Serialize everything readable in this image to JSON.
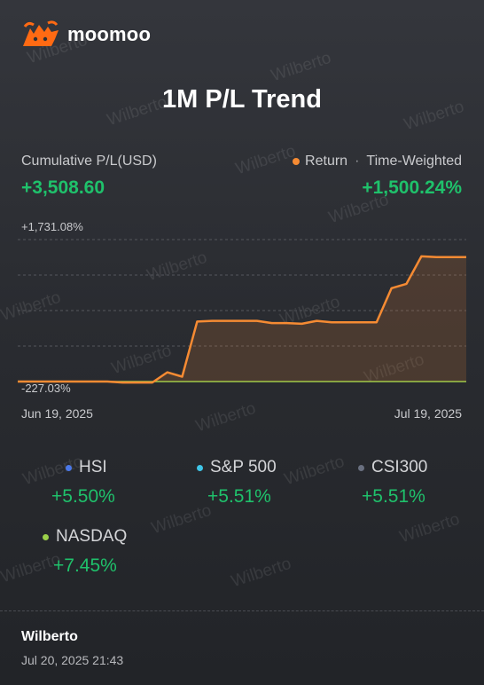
{
  "brand": {
    "name": "moomoo",
    "logo_icon": "moomoo-bull-logo-icon",
    "logo_color": "#ff6a13"
  },
  "title": "1M P/L Trend",
  "cumulative": {
    "label": "Cumulative P/L(USD)",
    "value": "+3,508.60"
  },
  "legend": {
    "series_label": "Return",
    "separator": "·",
    "method": "Time-Weighted",
    "value": "+1,500.24%"
  },
  "watermark": "Wilberto",
  "colors": {
    "positive": "#1fc16b",
    "return_line": "#f68b33",
    "benchmark_line": "#9bd04a"
  },
  "chart_data": {
    "type": "line",
    "ylim_labels": {
      "top": "+1,731.08%",
      "bottom": "-227.03%"
    },
    "ylim": [
      -227.03,
      1731.08
    ],
    "x_labels": {
      "start": "Jun 19, 2025",
      "end": "Jul 19, 2025"
    },
    "grid": true,
    "series": [
      {
        "name": "Return",
        "color": "#f68b33",
        "values": [
          -227,
          -227,
          -227,
          -227,
          -227,
          -227,
          -227,
          -240,
          -240,
          -240,
          -100,
          -160,
          600,
          610,
          610,
          610,
          610,
          580,
          580,
          570,
          610,
          590,
          590,
          590,
          590,
          1060,
          1120,
          1500,
          1490,
          1490,
          1490
        ]
      },
      {
        "color": "#9bd04a",
        "values": [
          -227,
          -227,
          -227,
          -227,
          -227,
          -227,
          -227,
          -227,
          -227,
          -227,
          -227,
          -227,
          -227,
          -227,
          -227,
          -227,
          -227,
          -227,
          -227,
          -227,
          -227,
          -227,
          -227,
          -227,
          -227,
          -227,
          -227,
          -227,
          -227,
          -227,
          -227
        ]
      }
    ]
  },
  "benchmarks": [
    {
      "name": "HSI",
      "value": "+5.50%",
      "color": "#4a78e8"
    },
    {
      "name": "S&P 500",
      "value": "+5.51%",
      "color": "#3fc6e8"
    },
    {
      "name": "CSI300",
      "value": "+5.51%",
      "color": "#6a7080"
    },
    {
      "name": "NASDAQ",
      "value": "+7.45%",
      "color": "#9bd04a"
    }
  ],
  "footer": {
    "user": "Wilberto",
    "timestamp": "Jul 20, 2025 21:43"
  }
}
